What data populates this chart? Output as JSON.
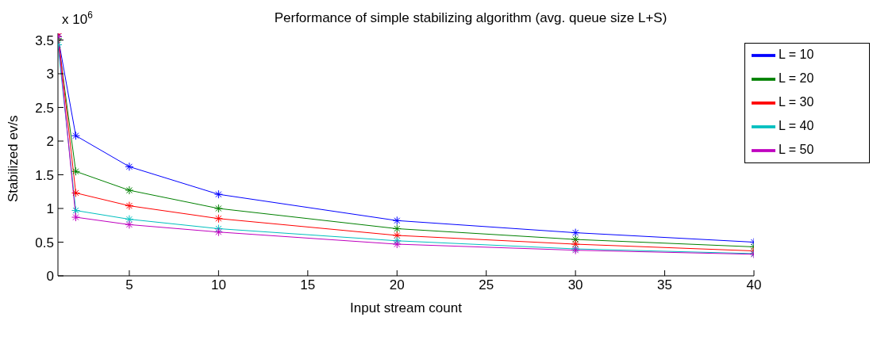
{
  "chart_data": {
    "type": "line",
    "title": "Performance of simple stabilizing algorithm (avg. queue size L+S)",
    "xlabel": "Input stream count",
    "ylabel": "Stabilized ev/s",
    "annotations": [
      "x 10$^{6}$"
    ],
    "x": [
      1,
      2,
      5,
      10,
      20,
      30,
      40
    ],
    "series": [
      {
        "name": "L = 10",
        "color": "#0000ff",
        "values": [
          3.55,
          2.08,
          1.62,
          1.21,
          0.82,
          0.64,
          0.5
        ]
      },
      {
        "name": "L = 20",
        "color": "#008000",
        "values": [
          3.52,
          1.55,
          1.27,
          1.0,
          0.7,
          0.54,
          0.43
        ]
      },
      {
        "name": "L = 30",
        "color": "#ff0000",
        "values": [
          3.6,
          1.23,
          1.04,
          0.85,
          0.6,
          0.47,
          0.37
        ]
      },
      {
        "name": "L = 40",
        "color": "#00bfbf",
        "values": [
          3.43,
          0.97,
          0.84,
          0.7,
          0.52,
          0.4,
          0.33
        ]
      },
      {
        "name": "L = 50",
        "color": "#bf00bf",
        "values": [
          3.55,
          0.87,
          0.76,
          0.65,
          0.47,
          0.38,
          0.32
        ]
      }
    ],
    "xlim": [
      1,
      40
    ],
    "xticks": [
      5,
      10,
      15,
      20,
      25,
      30,
      35,
      40
    ],
    "ylim": [
      0,
      3.6
    ],
    "yticks": [
      0,
      0.5,
      1,
      1.5,
      2,
      2.5,
      3,
      3.5
    ],
    "grid": false,
    "legend": "top right",
    "marker": "cross",
    "line_style": "solid"
  }
}
